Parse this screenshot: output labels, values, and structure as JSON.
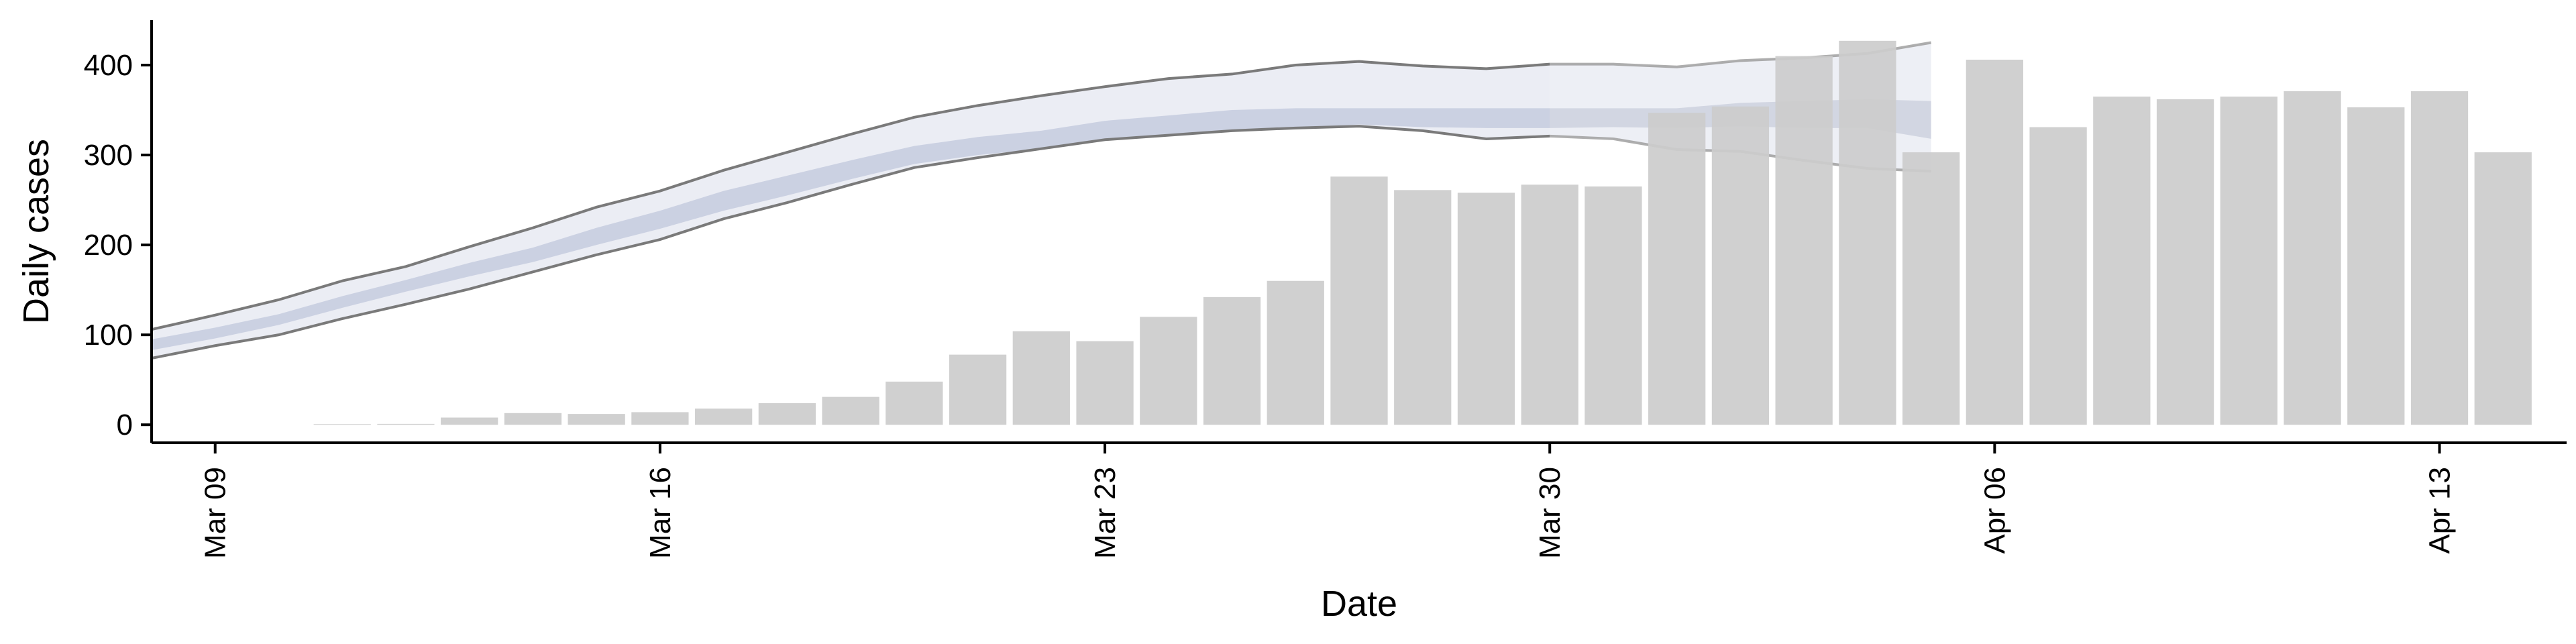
{
  "chart_data": {
    "type": "bar",
    "xlabel": "Date",
    "ylabel": "Daily cases",
    "ylim": [
      -20,
      450
    ],
    "yticks": [
      0,
      100,
      200,
      300,
      400
    ],
    "x_start": "2020-03-08",
    "x_end": "2020-04-15",
    "xticks": [
      {
        "date": "2020-03-09",
        "label": "Mar 09"
      },
      {
        "date": "2020-03-16",
        "label": "Mar 16"
      },
      {
        "date": "2020-03-23",
        "label": "Mar 23"
      },
      {
        "date": "2020-03-30",
        "label": "Mar 30"
      },
      {
        "date": "2020-04-06",
        "label": "Apr 06"
      },
      {
        "date": "2020-04-13",
        "label": "Apr 13"
      }
    ],
    "grid": false,
    "colors": {
      "bars": "#cccccc",
      "band_outer": "#e9ebf3",
      "band_inner": "#c8cde0",
      "band_lines": "#7a7a7a",
      "forecast_outer": "#dfe2ec",
      "forecast_inner": "#b8bdd0",
      "forecast_lines": "#9a9a9a"
    },
    "bars": [
      {
        "date": "2020-03-11",
        "value": 0
      },
      {
        "date": "2020-03-12",
        "value": 1
      },
      {
        "date": "2020-03-13",
        "value": 8
      },
      {
        "date": "2020-03-14",
        "value": 13
      },
      {
        "date": "2020-03-15",
        "value": 12
      },
      {
        "date": "2020-03-16",
        "value": 14
      },
      {
        "date": "2020-03-17",
        "value": 18
      },
      {
        "date": "2020-03-18",
        "value": 24
      },
      {
        "date": "2020-03-19",
        "value": 31
      },
      {
        "date": "2020-03-20",
        "value": 48
      },
      {
        "date": "2020-03-21",
        "value": 78
      },
      {
        "date": "2020-03-22",
        "value": 104
      },
      {
        "date": "2020-03-23",
        "value": 93
      },
      {
        "date": "2020-03-24",
        "value": 120
      },
      {
        "date": "2020-03-25",
        "value": 142
      },
      {
        "date": "2020-03-26",
        "value": 160
      },
      {
        "date": "2020-03-27",
        "value": 276
      },
      {
        "date": "2020-03-28",
        "value": 261
      },
      {
        "date": "2020-03-29",
        "value": 258
      },
      {
        "date": "2020-03-30",
        "value": 267
      },
      {
        "date": "2020-03-31",
        "value": 265
      },
      {
        "date": "2020-04-01",
        "value": 347
      },
      {
        "date": "2020-04-02",
        "value": 354
      },
      {
        "date": "2020-04-03",
        "value": 410
      },
      {
        "date": "2020-04-04",
        "value": 427
      },
      {
        "date": "2020-04-05",
        "value": 303
      },
      {
        "date": "2020-04-06",
        "value": 406
      },
      {
        "date": "2020-04-07",
        "value": 331
      },
      {
        "date": "2020-04-08",
        "value": 365
      },
      {
        "date": "2020-04-09",
        "value": 362
      },
      {
        "date": "2020-04-10",
        "value": 365
      },
      {
        "date": "2020-04-11",
        "value": 371
      },
      {
        "date": "2020-04-12",
        "value": 353
      },
      {
        "date": "2020-04-13",
        "value": 371
      },
      {
        "date": "2020-04-14",
        "value": 303
      }
    ],
    "band": {
      "date": [
        "2020-03-08",
        "2020-03-09",
        "2020-03-10",
        "2020-03-11",
        "2020-03-12",
        "2020-03-13",
        "2020-03-14",
        "2020-03-15",
        "2020-03-16",
        "2020-03-17",
        "2020-03-18",
        "2020-03-19",
        "2020-03-20",
        "2020-03-21",
        "2020-03-22",
        "2020-03-23",
        "2020-03-24",
        "2020-03-25",
        "2020-03-26",
        "2020-03-27",
        "2020-03-28",
        "2020-03-29",
        "2020-03-30",
        "2020-03-31",
        "2020-04-01",
        "2020-04-02",
        "2020-04-03",
        "2020-04-04",
        "2020-04-05"
      ],
      "upper": [
        106,
        122,
        139,
        160,
        176,
        198,
        219,
        242,
        260,
        283,
        303,
        323,
        342,
        355,
        366,
        376,
        385,
        390,
        400,
        404,
        399,
        396,
        401,
        401,
        398,
        405,
        408,
        413,
        425
      ],
      "lower": [
        74,
        88,
        100,
        118,
        134,
        151,
        170,
        189,
        206,
        229,
        247,
        267,
        286,
        297,
        307,
        317,
        322,
        327,
        330,
        332,
        327,
        318,
        321,
        318,
        306,
        304,
        294,
        285,
        282
      ],
      "inner_upper": [
        95,
        108,
        123,
        143,
        161,
        180,
        197,
        219,
        238,
        260,
        277,
        294,
        310,
        320,
        327,
        338,
        344,
        350,
        352,
        352,
        352,
        352,
        352,
        352,
        352,
        358,
        360,
        362,
        360
      ],
      "inner_lower": [
        83,
        96,
        111,
        130,
        148,
        165,
        181,
        200,
        218,
        238,
        255,
        273,
        290,
        300,
        307,
        316,
        322,
        326,
        330,
        334,
        331,
        330,
        330,
        331,
        330,
        332,
        330,
        330,
        318
      ],
      "forecast_from": "2020-03-30"
    }
  }
}
